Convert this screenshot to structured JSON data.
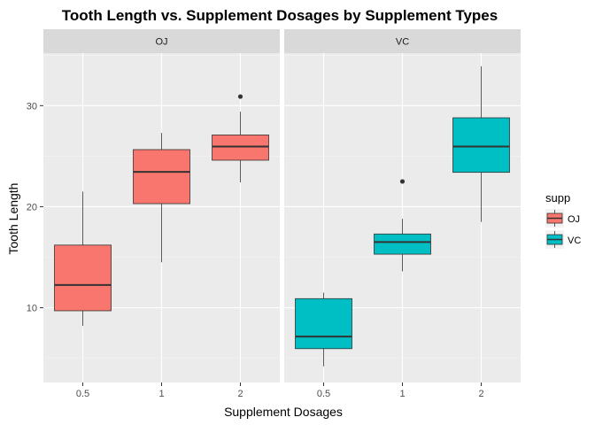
{
  "chart_data": {
    "type": "boxplot",
    "title": "Tooth Length vs. Supplement Dosages by Supplement Types",
    "xlabel": "Supplement Dosages",
    "ylabel": "Tooth Length",
    "x_categories": [
      "0.5",
      "1",
      "2"
    ],
    "y_ticks": [
      10,
      20,
      30
    ],
    "ylim": [
      2.6,
      35.2
    ],
    "grid": true,
    "legend": {
      "title": "supp",
      "placement": "right",
      "entries": [
        {
          "label": "OJ",
          "color": "#F8766D"
        },
        {
          "label": "VC",
          "color": "#00BFC4"
        }
      ]
    },
    "panels": [
      {
        "label": "OJ",
        "color": "#F8766D",
        "boxes": [
          {
            "x": "0.5",
            "min": 8.2,
            "q1": 9.7,
            "median": 12.25,
            "q3": 16.2,
            "max": 21.5,
            "outliers": []
          },
          {
            "x": "1",
            "min": 14.5,
            "q1": 20.3,
            "median": 23.45,
            "q3": 25.65,
            "max": 27.3,
            "outliers": []
          },
          {
            "x": "2",
            "min": 22.4,
            "q1": 24.6,
            "median": 25.95,
            "q3": 27.1,
            "max": 29.4,
            "outliers": [
              30.9
            ]
          }
        ]
      },
      {
        "label": "VC",
        "color": "#00BFC4",
        "boxes": [
          {
            "x": "0.5",
            "min": 4.2,
            "q1": 5.95,
            "median": 7.15,
            "q3": 10.9,
            "max": 11.5,
            "outliers": []
          },
          {
            "x": "1",
            "min": 13.6,
            "q1": 15.3,
            "median": 16.5,
            "q3": 17.3,
            "max": 18.8,
            "outliers": [
              22.5
            ]
          },
          {
            "x": "2",
            "min": 18.5,
            "q1": 23.4,
            "median": 25.95,
            "q3": 28.8,
            "max": 33.9,
            "outliers": []
          }
        ]
      }
    ]
  }
}
